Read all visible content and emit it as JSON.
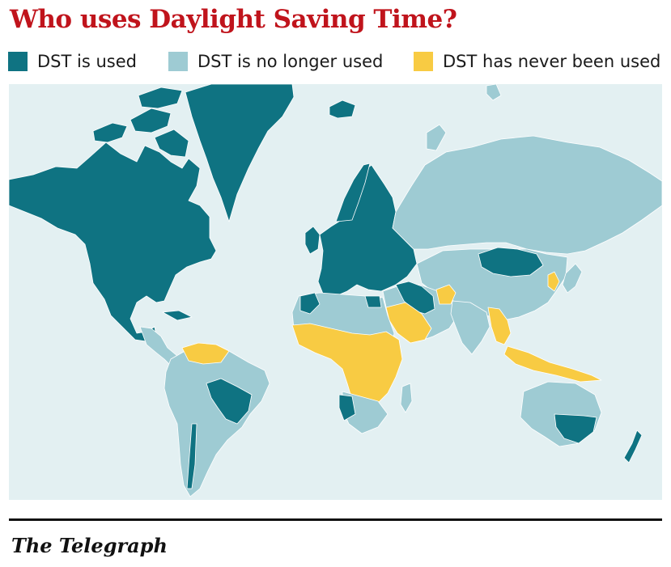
{
  "title": "Who uses Daylight Saving Time?",
  "legend": [
    {
      "label": "DST is used",
      "color": "#0f7382"
    },
    {
      "label": "DST is no longer used",
      "color": "#9ecbd3"
    },
    {
      "label": "DST has never been used",
      "color": "#f8cb43"
    }
  ],
  "map": {
    "ocean_color": "#e3f0f2",
    "border_color": "#ffffff"
  },
  "footer": {
    "brand": "The Telegraph"
  }
}
